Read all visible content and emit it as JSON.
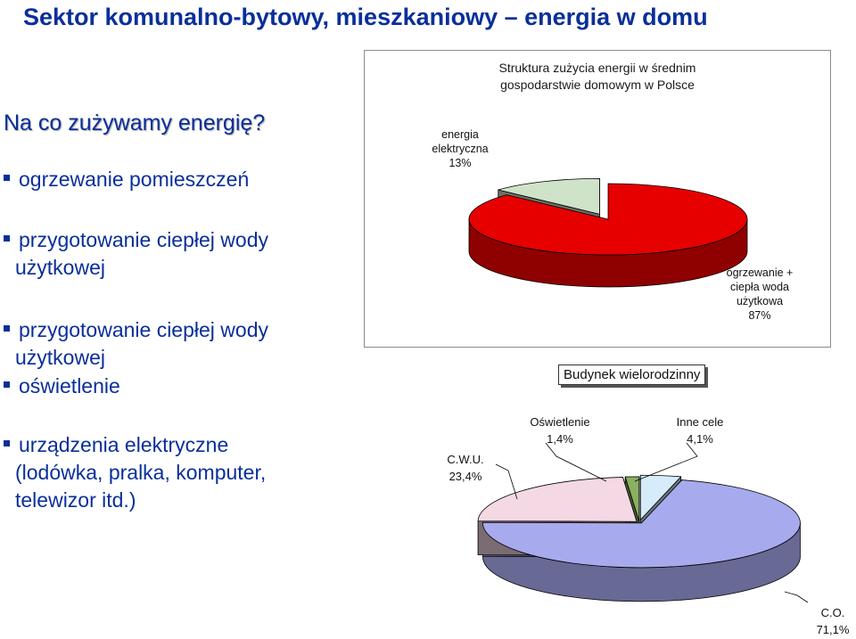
{
  "slide": {
    "title": "Sektor komunalno-bytowy, mieszkaniowy – energia w domu",
    "question": "Na co zużywamy energię?",
    "bullets": [
      {
        "lines": [
          "ogrzewanie pomieszczeń"
        ]
      },
      {
        "lines": [
          "przygotowanie ciepłej wody",
          "użytkowej"
        ]
      },
      {
        "lines": [
          "przygotowanie ciepłej wody",
          "użytkowej"
        ]
      },
      {
        "lines": [
          "oświetlenie"
        ]
      },
      {
        "lines": [
          "urządzenia elektryczne",
          "(lodówka, pralka, komputer,",
          "telewizor itd.)"
        ]
      }
    ]
  },
  "chart_data": [
    {
      "type": "pie",
      "title": "Struktura zużycia energii w średnim gospodarstwie domowym w Polsce",
      "title_lines": [
        "Struktura zużycia energii w średnim",
        "gospodarstwie domowym w Polsce"
      ],
      "slices": [
        {
          "label_lines": [
            "ogrzewanie +",
            "ciepła woda",
            "użytkowa"
          ],
          "value_label": "87%",
          "value": 87,
          "color": "#e60000"
        },
        {
          "label_lines": [
            "energia",
            "elektryczna"
          ],
          "value_label": "13%",
          "value": 13,
          "color": "#cfe3c8",
          "exploded": true
        }
      ]
    },
    {
      "type": "pie",
      "title": "Budynek wielorodzinny",
      "slices": [
        {
          "label": "C.O.",
          "value_label": "71,1%",
          "value": 71.1,
          "color": "#a8aaee"
        },
        {
          "label": "C.W.U.",
          "value_label": "23,4%",
          "value": 23.4,
          "color": "#f4d8e4"
        },
        {
          "label": "Oświetlenie",
          "value_label": "1,4%",
          "value": 1.4,
          "color": "#8ab060"
        },
        {
          "label": "Inne cele",
          "value_label": "4,1%",
          "value": 4.1,
          "color": "#d6ecfb"
        }
      ]
    }
  ]
}
